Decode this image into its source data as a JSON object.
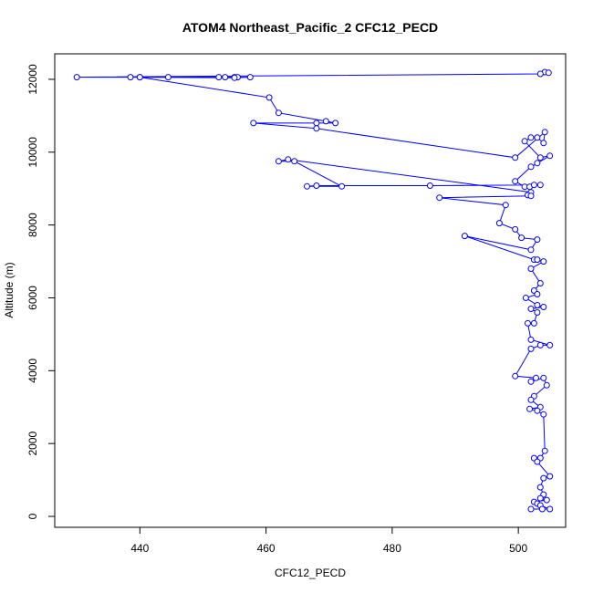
{
  "chart_data": {
    "type": "line",
    "title": "ATOM4 Northeast_Pacific_2 CFC12_PECD",
    "xlabel": "CFC12_PECD",
    "ylabel": "Altitude (m)",
    "xlim": [
      426.5,
      507.5
    ],
    "ylim": [
      -300,
      12700
    ],
    "xticks": [
      440,
      460,
      480,
      500
    ],
    "yticks": [
      0,
      2000,
      4000,
      6000,
      8000,
      10000,
      12000
    ],
    "grid": false,
    "line_color": "#0000ff",
    "marker": "open-circle",
    "series": [
      {
        "x": [
          504.2,
          504.8,
          503.5,
          430.0,
          438.5,
          440.0,
          444.5,
          452.5,
          453.5,
          455.0,
          455.5,
          457.5,
          455.0,
          440.0,
          460.5,
          462.0,
          469.5,
          471.0,
          468.0,
          458.0,
          468.0,
          499.5,
          504.2,
          504.0,
          503.0,
          502.0,
          501.0,
          503.5,
          505.0,
          503.0,
          502.0,
          499.5,
          501.0,
          501.8,
          502.5,
          503.5,
          486.0,
          468.0,
          466.5,
          472.0,
          464.5,
          462.0,
          463.5,
          502.0,
          501.5,
          502.0,
          487.5,
          498.0,
          497.0,
          499.5,
          500.5,
          503.0,
          502.0,
          491.5,
          502.5,
          503.0,
          504.0,
          502.0,
          503.5,
          502.5,
          503.0,
          501.2,
          503.0,
          504.0,
          502.0,
          503.0,
          502.5,
          501.5,
          502.0,
          505.0,
          503.5,
          502.0,
          499.5,
          502.8,
          502.0,
          504.0,
          504.5,
          502.5,
          502.0,
          503.5,
          501.8,
          503.0,
          504.0,
          504.2,
          503.5,
          502.5,
          503.0,
          505.0,
          504.0,
          503.5,
          504.0,
          503.5,
          504.5,
          502.5,
          503.0,
          503.5,
          505.0,
          503.8,
          502.0
        ],
        "y": [
          12200,
          12180,
          12150,
          12060,
          12060,
          12060,
          12060,
          12060,
          12060,
          12060,
          12060,
          12060,
          12040,
          12060,
          11500,
          11080,
          10850,
          10800,
          10800,
          10800,
          10650,
          9850,
          10550,
          10250,
          10400,
          10400,
          10300,
          9850,
          9900,
          9700,
          9600,
          9200,
          9050,
          9050,
          9100,
          9100,
          9080,
          9080,
          9060,
          9060,
          9750,
          9750,
          9800,
          8900,
          8820,
          8800,
          8750,
          8550,
          8050,
          7880,
          7650,
          7600,
          7320,
          7700,
          7050,
          7050,
          7000,
          6800,
          6400,
          6200,
          6100,
          6000,
          5800,
          5750,
          5700,
          5600,
          5300,
          5300,
          4850,
          4700,
          4700,
          4600,
          3850,
          3800,
          3700,
          3800,
          3600,
          3300,
          3200,
          3000,
          2950,
          2900,
          2800,
          1800,
          1600,
          1600,
          1500,
          1100,
          1050,
          800,
          600,
          500,
          450,
          400,
          350,
          300,
          200,
          200,
          200
        ]
      }
    ]
  }
}
